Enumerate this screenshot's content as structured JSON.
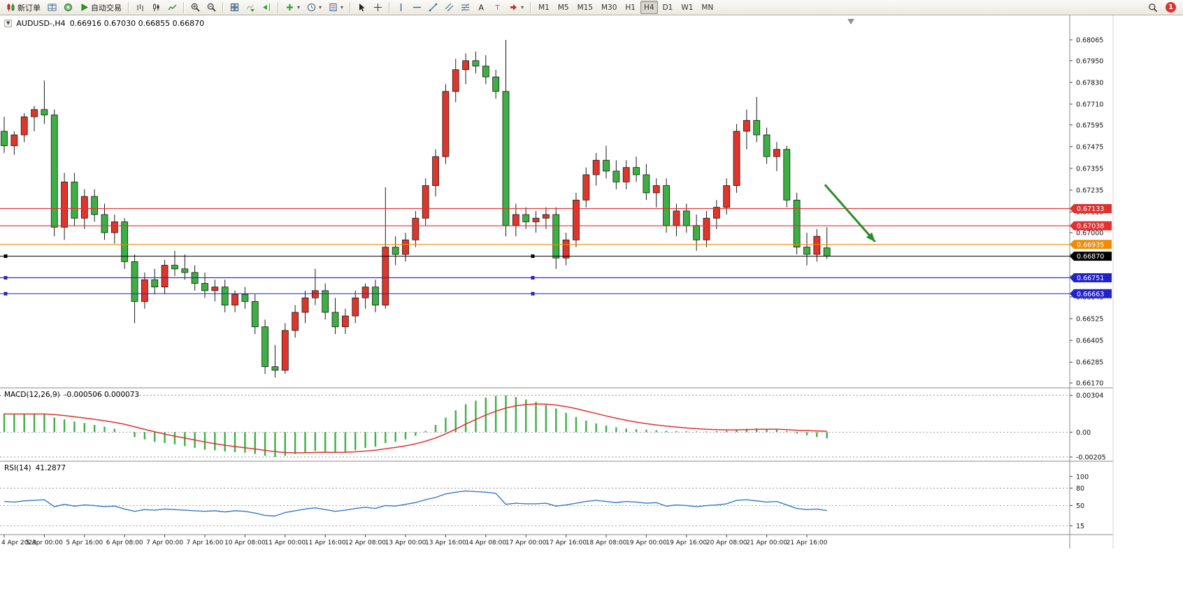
{
  "toolbar": {
    "groups": [
      {
        "items": [
          {
            "name": "new-order-button",
            "icon": "new-order-icon",
            "label": "新订单"
          },
          {
            "name": "market-watch-button",
            "icon": "market-watch-icon"
          },
          {
            "name": "data-window-button",
            "icon": "data-window-icon"
          },
          {
            "name": "auto-trading-button",
            "icon": "play-icon",
            "label": "自动交易"
          }
        ]
      },
      {
        "items": [
          {
            "name": "bar-chart-button",
            "icon": "bar-chart-icon"
          },
          {
            "name": "candlestick-chart-button",
            "icon": "candlestick-icon"
          },
          {
            "name": "line-chart-button",
            "icon": "line-chart-icon"
          }
        ]
      },
      {
        "items": [
          {
            "name": "zoom-in-button",
            "icon": "zoom-in-icon"
          },
          {
            "name": "zoom-out-button",
            "icon": "zoom-out-icon"
          }
        ]
      },
      {
        "items": [
          {
            "name": "tile-windows-button",
            "icon": "tile-windows-icon"
          },
          {
            "name": "auto-scroll-button",
            "icon": "auto-scroll-icon"
          },
          {
            "name": "chart-shift-button",
            "icon": "chart-shift-icon"
          }
        ]
      },
      {
        "items": [
          {
            "name": "indicators-button",
            "icon": "indicators-icon",
            "dropdown": true
          },
          {
            "name": "periods-button",
            "icon": "clock-icon",
            "dropdown": true
          },
          {
            "name": "templates-button",
            "icon": "templates-icon",
            "dropdown": true
          }
        ]
      },
      {
        "items": [
          {
            "name": "cursor-button",
            "icon": "cursor-icon"
          },
          {
            "name": "crosshair-button",
            "icon": "crosshair-icon"
          }
        ]
      },
      {
        "items": [
          {
            "name": "vertical-line-button",
            "icon": "vertical-line-icon"
          },
          {
            "name": "horizontal-line-button",
            "icon": "horizontal-line-icon"
          },
          {
            "name": "trendline-button",
            "icon": "trendline-icon"
          },
          {
            "name": "channel-button",
            "icon": "channel-icon"
          },
          {
            "name": "fibonacci-button",
            "icon": "fibonacci-icon"
          },
          {
            "name": "text-button",
            "icon": "text-icon"
          },
          {
            "name": "label-button",
            "icon": "label-icon"
          },
          {
            "name": "arrows-button",
            "icon": "arrows-icon",
            "dropdown": true
          }
        ]
      }
    ],
    "timeframes": [
      "M1",
      "M5",
      "M15",
      "M30",
      "H1",
      "H4",
      "D1",
      "W1",
      "MN"
    ],
    "active_timeframe": "H4",
    "notification_count": "1"
  },
  "chart_data": [
    {
      "type": "candlestick",
      "symbol_label": "AUDUSD-,H4",
      "ohlc_text": "0.66916 0.67030 0.66855 0.66870",
      "ylim": [
        0.66143,
        0.682
      ],
      "up_color": "#e0352b",
      "down_color": "#3cb043",
      "y_ticks": [
        0.68065,
        0.6795,
        0.6783,
        0.6771,
        0.67595,
        0.67475,
        0.67355,
        0.67235,
        0.67115,
        0.67,
        0.6688,
        0.6676,
        0.66645,
        0.66525,
        0.66405,
        0.66285,
        0.6617
      ],
      "hlines": [
        {
          "name": "resistance-line-1",
          "price": 0.67133,
          "color": "#e03131",
          "tag": "0.67133"
        },
        {
          "name": "resistance-line-2",
          "price": 0.67038,
          "color": "#e03131",
          "tag": "0.67038"
        },
        {
          "name": "breakout-line-orange",
          "price": 0.66935,
          "color": "#f08c00",
          "tag": "0.66935"
        },
        {
          "name": "current-price-line",
          "price": 0.6687,
          "color": "#000000",
          "tag": "0.66870",
          "handles": true
        },
        {
          "name": "support-line-1",
          "price": 0.66751,
          "color": "#2222cc",
          "tag": "0.66751",
          "handles": true
        },
        {
          "name": "support-line-2",
          "price": 0.66663,
          "color": "#2222cc",
          "tag": "0.66663",
          "handles": true
        }
      ],
      "arrow": {
        "x1_bar": 81.8,
        "price1": 0.67265,
        "x2_bar": 86.8,
        "price2": 0.6695,
        "color": "#2e8b2e"
      },
      "candles": [
        [
          0.6756,
          0.6764,
          0.6744,
          0.6748
        ],
        [
          0.6748,
          0.6756,
          0.6743,
          0.6754
        ],
        [
          0.6754,
          0.6766,
          0.675,
          0.6764
        ],
        [
          0.6764,
          0.677,
          0.6756,
          0.6768
        ],
        [
          0.6768,
          0.6784,
          0.676,
          0.6765
        ],
        [
          0.6765,
          0.6768,
          0.6698,
          0.6703
        ],
        [
          0.6703,
          0.6733,
          0.6696,
          0.6728
        ],
        [
          0.6728,
          0.6733,
          0.6704,
          0.6708
        ],
        [
          0.6708,
          0.6724,
          0.6702,
          0.672
        ],
        [
          0.672,
          0.6724,
          0.6706,
          0.671
        ],
        [
          0.671,
          0.6716,
          0.6696,
          0.67
        ],
        [
          0.67,
          0.671,
          0.6694,
          0.6706
        ],
        [
          0.6706,
          0.6708,
          0.668,
          0.6684
        ],
        [
          0.6684,
          0.6688,
          0.665,
          0.6662
        ],
        [
          0.6662,
          0.6678,
          0.6658,
          0.6674
        ],
        [
          0.6674,
          0.668,
          0.6666,
          0.667
        ],
        [
          0.667,
          0.6685,
          0.6666,
          0.6682
        ],
        [
          0.6682,
          0.669,
          0.6676,
          0.668
        ],
        [
          0.668,
          0.6688,
          0.6674,
          0.6678
        ],
        [
          0.6678,
          0.6682,
          0.6668,
          0.6672
        ],
        [
          0.6672,
          0.6678,
          0.6664,
          0.6668
        ],
        [
          0.6668,
          0.6674,
          0.6662,
          0.667
        ],
        [
          0.667,
          0.6674,
          0.6656,
          0.666
        ],
        [
          0.666,
          0.6668,
          0.6656,
          0.6666
        ],
        [
          0.6666,
          0.667,
          0.6658,
          0.6662
        ],
        [
          0.6662,
          0.6666,
          0.6644,
          0.6648
        ],
        [
          0.6648,
          0.6652,
          0.6622,
          0.6626
        ],
        [
          0.6626,
          0.6638,
          0.662,
          0.6624
        ],
        [
          0.6624,
          0.665,
          0.6622,
          0.6646
        ],
        [
          0.6646,
          0.666,
          0.6642,
          0.6656
        ],
        [
          0.6656,
          0.6668,
          0.665,
          0.6664
        ],
        [
          0.6664,
          0.668,
          0.666,
          0.6668
        ],
        [
          0.6668,
          0.6672,
          0.6652,
          0.6656
        ],
        [
          0.6656,
          0.6664,
          0.6644,
          0.6648
        ],
        [
          0.6648,
          0.6658,
          0.6644,
          0.6654
        ],
        [
          0.6654,
          0.6668,
          0.665,
          0.6664
        ],
        [
          0.6664,
          0.6672,
          0.6658,
          0.667
        ],
        [
          0.667,
          0.6674,
          0.6656,
          0.666
        ],
        [
          0.666,
          0.6725,
          0.6658,
          0.6692
        ],
        [
          0.6692,
          0.6698,
          0.6682,
          0.6688
        ],
        [
          0.6688,
          0.67,
          0.6684,
          0.6696
        ],
        [
          0.6696,
          0.6712,
          0.6692,
          0.6708
        ],
        [
          0.6708,
          0.673,
          0.6704,
          0.6726
        ],
        [
          0.6726,
          0.6746,
          0.672,
          0.6742
        ],
        [
          0.6742,
          0.6782,
          0.6738,
          0.6778
        ],
        [
          0.6778,
          0.6796,
          0.6772,
          0.679
        ],
        [
          0.679,
          0.6799,
          0.6782,
          0.6795
        ],
        [
          0.6795,
          0.68,
          0.6788,
          0.6792
        ],
        [
          0.6792,
          0.6798,
          0.6782,
          0.6786
        ],
        [
          0.6786,
          0.679,
          0.6774,
          0.6778
        ],
        [
          0.6778,
          0.68065,
          0.6698,
          0.6704
        ],
        [
          0.6704,
          0.6716,
          0.6698,
          0.671
        ],
        [
          0.671,
          0.6714,
          0.6702,
          0.6706
        ],
        [
          0.6706,
          0.6712,
          0.67,
          0.6708
        ],
        [
          0.6708,
          0.6714,
          0.6702,
          0.671
        ],
        [
          0.671,
          0.6714,
          0.668,
          0.6686
        ],
        [
          0.6686,
          0.67,
          0.6682,
          0.6696
        ],
        [
          0.6696,
          0.6722,
          0.6692,
          0.6718
        ],
        [
          0.6718,
          0.6736,
          0.6714,
          0.6732
        ],
        [
          0.6732,
          0.6744,
          0.6726,
          0.674
        ],
        [
          0.674,
          0.6748,
          0.673,
          0.6734
        ],
        [
          0.6734,
          0.674,
          0.6724,
          0.6728
        ],
        [
          0.6728,
          0.674,
          0.6724,
          0.6736
        ],
        [
          0.6736,
          0.6742,
          0.6728,
          0.6732
        ],
        [
          0.6732,
          0.6738,
          0.6718,
          0.6722
        ],
        [
          0.6722,
          0.673,
          0.6714,
          0.6726
        ],
        [
          0.6726,
          0.673,
          0.67,
          0.6704
        ],
        [
          0.6704,
          0.6716,
          0.6698,
          0.6712
        ],
        [
          0.6712,
          0.6716,
          0.67,
          0.6704
        ],
        [
          0.6704,
          0.671,
          0.669,
          0.6696
        ],
        [
          0.6696,
          0.6712,
          0.6692,
          0.6708
        ],
        [
          0.6708,
          0.6718,
          0.6702,
          0.6714
        ],
        [
          0.6714,
          0.673,
          0.671,
          0.6726
        ],
        [
          0.6726,
          0.676,
          0.6722,
          0.6756
        ],
        [
          0.6756,
          0.6768,
          0.6746,
          0.6762
        ],
        [
          0.6762,
          0.6775,
          0.675,
          0.6754
        ],
        [
          0.6754,
          0.6758,
          0.6738,
          0.6742
        ],
        [
          0.6742,
          0.675,
          0.6734,
          0.6746
        ],
        [
          0.6746,
          0.6748,
          0.6714,
          0.6718
        ],
        [
          0.6718,
          0.6722,
          0.6688,
          0.6692
        ],
        [
          0.6692,
          0.67,
          0.6682,
          0.6688
        ],
        [
          0.6688,
          0.6702,
          0.6684,
          0.6698
        ],
        [
          0.66916,
          0.6703,
          0.66855,
          0.6687
        ]
      ],
      "x_labels": [
        {
          "bar": 0,
          "label": "4 Apr 2023"
        },
        {
          "bar": 4,
          "label": "5 Apr 00:00"
        },
        {
          "bar": 8,
          "label": "5 Apr 16:00"
        },
        {
          "bar": 12,
          "label": "6 Apr 08:00"
        },
        {
          "bar": 16,
          "label": "7 Apr 00:00"
        },
        {
          "bar": 20,
          "label": "7 Apr 16:00"
        },
        {
          "bar": 24,
          "label": "10 Apr 08:00"
        },
        {
          "bar": 28,
          "label": "11 Apr 00:00"
        },
        {
          "bar": 32,
          "label": "11 Apr 16:00"
        },
        {
          "bar": 36,
          "label": "12 Apr 08:00"
        },
        {
          "bar": 40,
          "label": "13 Apr 00:00"
        },
        {
          "bar": 44,
          "label": "13 Apr 16:00"
        },
        {
          "bar": 48,
          "label": "14 Apr 08:00"
        },
        {
          "bar": 52,
          "label": "17 Apr 00:00"
        },
        {
          "bar": 56,
          "label": "17 Apr 16:00"
        },
        {
          "bar": 60,
          "label": "18 Apr 08:00"
        },
        {
          "bar": 64,
          "label": "19 Apr 00:00"
        },
        {
          "bar": 68,
          "label": "19 Apr 16:00"
        },
        {
          "bar": 72,
          "label": "20 Apr 08:00"
        },
        {
          "bar": 76,
          "label": "21 Apr 00:00"
        },
        {
          "bar": 80,
          "label": "21 Apr 16:00"
        }
      ]
    },
    {
      "type": "bar",
      "title": "MACD(12,26,9)",
      "values_text": "-0.000506 0.000073",
      "ylim": [
        -0.0024,
        0.0036
      ],
      "histogram_color": "#3cb043",
      "signal_color": "#e03131",
      "y_ticks": [
        {
          "v": 0.00304,
          "label": "0.00304"
        },
        {
          "v": 0,
          "label": "0.00"
        },
        {
          "v": -0.00205,
          "label": "-0.00205"
        }
      ],
      "histogram": [
        0.00155,
        0.0015,
        0.00148,
        0.0015,
        0.00152,
        0.0012,
        0.00105,
        0.00088,
        0.00075,
        0.0006,
        0.00045,
        0.00028,
        0.0,
        -0.0004,
        -0.0006,
        -0.0008,
        -0.0009,
        -0.001,
        -0.00115,
        -0.0013,
        -0.00145,
        -0.0015,
        -0.0016,
        -0.00165,
        -0.0017,
        -0.0018,
        -0.00195,
        -0.00205,
        -0.00195,
        -0.0018,
        -0.0017,
        -0.00155,
        -0.0016,
        -0.0017,
        -0.00165,
        -0.0015,
        -0.0013,
        -0.0012,
        -0.0009,
        -0.0008,
        -0.0006,
        -0.0003,
        0.0001,
        0.0006,
        0.0012,
        0.0018,
        0.0023,
        0.0026,
        0.00285,
        0.003,
        0.00304,
        0.0029,
        0.0027,
        0.0025,
        0.00225,
        0.00195,
        0.0016,
        0.00125,
        0.00095,
        0.00072,
        0.00055,
        0.0004,
        0.0003,
        0.00024,
        0.0002,
        0.00016,
        0.00012,
        9e-05,
        7e-05,
        6e-05,
        6e-05,
        8e-05,
        0.00012,
        0.0002,
        0.00028,
        0.0003,
        0.00026,
        0.00021,
        0.0001,
        -0.00012,
        -0.00026,
        -0.0004,
        -0.000506
      ],
      "signal": [
        0.0015,
        0.0015,
        0.0015,
        0.0015,
        0.0015,
        0.00145,
        0.00137,
        0.00127,
        0.00117,
        0.00106,
        0.00094,
        0.00081,
        0.00065,
        0.00044,
        0.00023,
        3e-05,
        -0.00016,
        -0.00033,
        -0.00049,
        -0.00065,
        -0.00081,
        -0.00095,
        -0.00108,
        -0.00119,
        -0.00129,
        -0.00139,
        -0.0015,
        -0.00161,
        -0.00168,
        -0.0017,
        -0.0017,
        -0.00167,
        -0.00166,
        -0.00167,
        -0.00166,
        -0.00163,
        -0.00156,
        -0.00149,
        -0.00137,
        -0.00126,
        -0.00113,
        -0.00096,
        -0.00075,
        -0.00048,
        -0.00014,
        0.00025,
        0.00066,
        0.00105,
        0.00141,
        0.00173,
        0.00199,
        0.00217,
        0.00228,
        0.00232,
        0.00231,
        0.00224,
        0.00211,
        0.00194,
        0.00174,
        0.00154,
        0.00134,
        0.00115,
        0.00098,
        0.00083,
        0.0007,
        0.00059,
        0.0005,
        0.00042,
        0.00035,
        0.00029,
        0.00024,
        0.00021,
        0.00019,
        0.00019,
        0.00021,
        0.00023,
        0.00024,
        0.00024,
        0.00021,
        0.00015,
        0.00013,
        0.0001,
        7.3e-05
      ]
    },
    {
      "type": "line",
      "title": "RSI(14)",
      "value_text": "41.2877",
      "ylim": [
        0,
        125
      ],
      "line_color": "#3579c8",
      "levels": [
        80,
        50,
        15
      ],
      "y_ticks": [
        100,
        80,
        50,
        15
      ],
      "values": [
        57,
        56,
        58,
        59,
        60,
        48,
        52,
        49,
        51,
        50,
        48,
        49,
        44,
        40,
        43,
        42,
        44,
        43,
        42,
        41,
        40,
        41,
        39,
        41,
        40,
        37,
        33,
        32,
        38,
        41,
        44,
        46,
        43,
        40,
        42,
        45,
        47,
        45,
        50,
        49,
        52,
        55,
        60,
        64,
        70,
        73,
        75,
        74,
        73,
        71,
        52,
        54,
        53,
        53,
        54,
        49,
        51,
        54,
        57,
        59,
        57,
        55,
        57,
        56,
        54,
        55,
        49,
        51,
        50,
        48,
        50,
        51,
        53,
        59,
        60,
        58,
        56,
        57,
        51,
        45,
        43,
        44,
        41.2877
      ]
    }
  ]
}
